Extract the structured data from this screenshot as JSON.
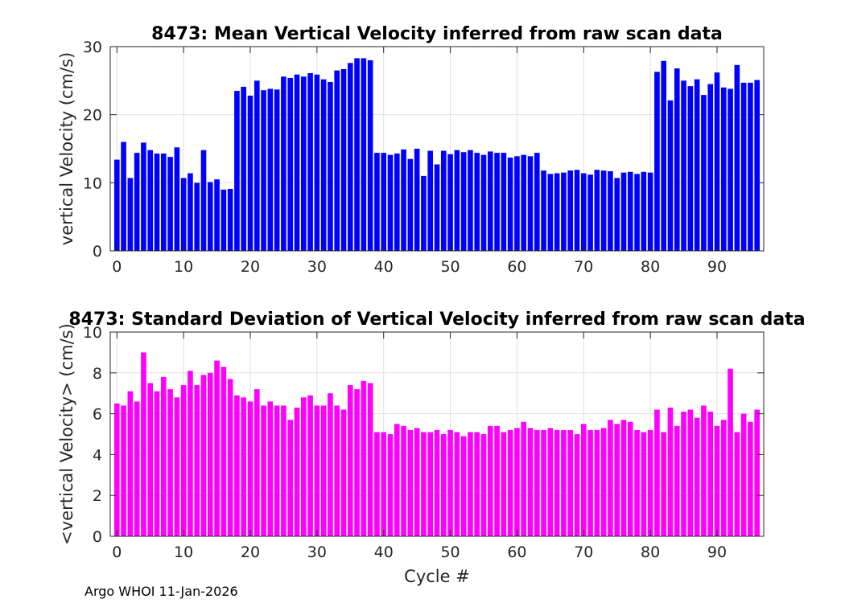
{
  "footer": {
    "text": "Argo WHOI 11-Jan-2026"
  },
  "chart_data": [
    {
      "type": "bar",
      "title": "8473: Mean Vertical Velocity inferred from raw scan data",
      "xlabel": "",
      "ylabel": "vertical Velocity (cm/s)",
      "xlim": [
        -1,
        97
      ],
      "ylim": [
        0,
        30
      ],
      "xticks": [
        0,
        10,
        20,
        30,
        40,
        50,
        60,
        70,
        80,
        90
      ],
      "yticks": [
        0,
        10,
        20,
        30
      ],
      "grid": true,
      "color": "#0000ff",
      "x_start": 0,
      "values": [
        13.4,
        16.0,
        10.7,
        14.4,
        15.9,
        14.8,
        14.3,
        14.3,
        13.8,
        15.2,
        10.7,
        11.4,
        10.0,
        14.8,
        10.1,
        10.5,
        9.0,
        9.1,
        23.5,
        24.1,
        22.8,
        25.0,
        23.6,
        23.8,
        23.7,
        25.6,
        25.4,
        25.9,
        25.6,
        26.1,
        25.9,
        25.2,
        24.8,
        26.5,
        26.7,
        27.6,
        28.3,
        28.3,
        28.0,
        14.4,
        14.4,
        14.1,
        14.3,
        14.9,
        13.5,
        15.0,
        11.0,
        14.7,
        12.7,
        14.7,
        14.2,
        14.8,
        14.5,
        14.8,
        14.4,
        14.1,
        14.6,
        14.4,
        14.4,
        13.7,
        13.9,
        14.1,
        13.9,
        14.4,
        11.8,
        11.3,
        11.4,
        11.5,
        11.8,
        11.9,
        11.4,
        11.2,
        11.9,
        11.8,
        11.7,
        10.7,
        11.5,
        11.6,
        11.3,
        11.6,
        11.5,
        26.3,
        27.9,
        22.1,
        26.8,
        25.0,
        24.2,
        25.2,
        22.9,
        24.5,
        26.2,
        24.0,
        23.8,
        27.3,
        24.7,
        24.7,
        25.1
      ]
    },
    {
      "type": "bar",
      "title": "8473: Standard Deviation of Vertical Velocity inferred from raw scan data",
      "xlabel": "Cycle #",
      "ylabel": "<vertical Velocity> (cm/s)",
      "xlim": [
        -1,
        97
      ],
      "ylim": [
        0,
        10
      ],
      "xticks": [
        0,
        10,
        20,
        30,
        40,
        50,
        60,
        70,
        80,
        90
      ],
      "yticks": [
        0,
        2,
        4,
        6,
        8,
        10
      ],
      "grid": true,
      "color": "#ff00ff",
      "x_start": 0,
      "values": [
        6.5,
        6.4,
        7.1,
        6.6,
        9.0,
        7.5,
        7.1,
        7.8,
        7.2,
        6.8,
        7.4,
        8.1,
        7.4,
        7.9,
        8.0,
        8.6,
        8.3,
        7.7,
        6.9,
        6.8,
        6.6,
        7.2,
        6.4,
        6.6,
        6.4,
        6.4,
        5.7,
        6.3,
        6.8,
        6.9,
        6.4,
        6.4,
        7.0,
        6.4,
        6.2,
        7.4,
        7.2,
        7.6,
        7.5,
        5.1,
        5.1,
        5.0,
        5.5,
        5.4,
        5.2,
        5.3,
        5.1,
        5.1,
        5.2,
        5.0,
        5.2,
        5.1,
        4.9,
        5.1,
        5.1,
        5.0,
        5.4,
        5.4,
        5.1,
        5.2,
        5.3,
        5.6,
        5.3,
        5.2,
        5.2,
        5.3,
        5.2,
        5.2,
        5.2,
        5.0,
        5.5,
        5.2,
        5.2,
        5.3,
        5.7,
        5.5,
        5.7,
        5.6,
        5.2,
        5.1,
        5.2,
        6.2,
        5.1,
        6.3,
        5.4,
        6.1,
        6.2,
        5.8,
        6.4,
        6.1,
        5.4,
        5.7,
        8.2,
        5.1,
        6.0,
        5.6,
        6.2
      ]
    }
  ]
}
